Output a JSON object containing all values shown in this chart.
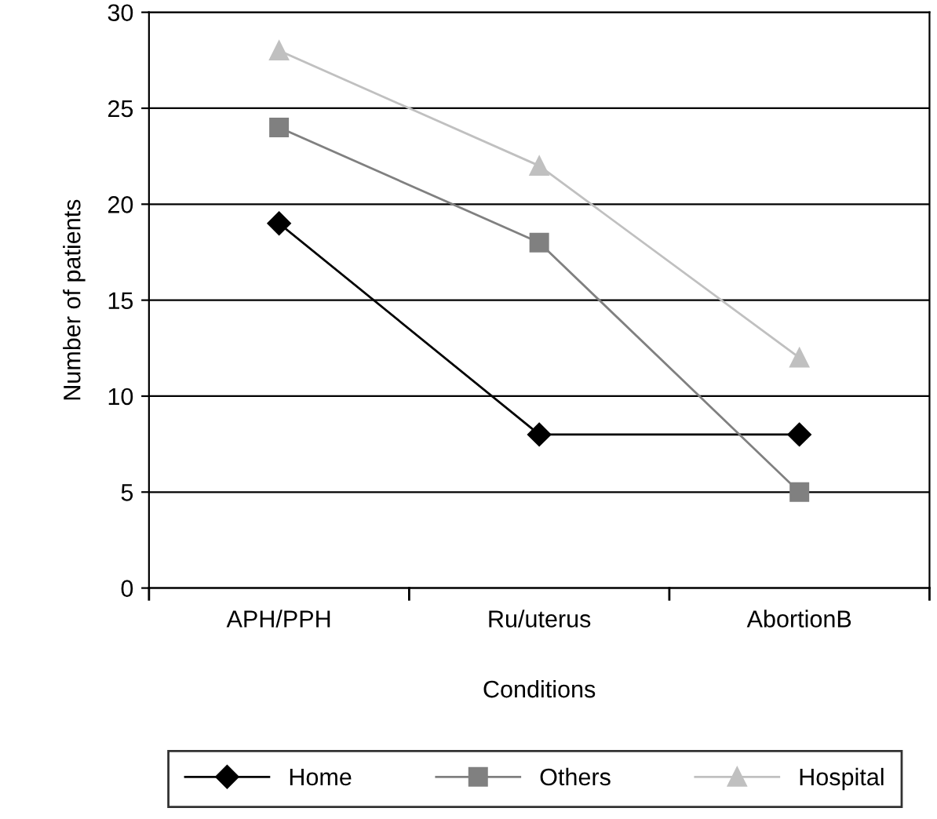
{
  "chart_data": {
    "type": "line",
    "xlabel": "Conditions",
    "ylabel": "Number of patients",
    "categories": [
      "APH/PPH",
      "Ru/uterus",
      "AbortionB"
    ],
    "series": [
      {
        "name": "Home",
        "color": "#000000",
        "marker": "diamond",
        "values": [
          19,
          8,
          8
        ]
      },
      {
        "name": "Others",
        "color": "#808080",
        "marker": "square",
        "values": [
          24,
          18,
          5
        ]
      },
      {
        "name": "Hospital",
        "color": "#c0c0c0",
        "marker": "triangle",
        "values": [
          28,
          22,
          12
        ]
      }
    ],
    "ylim": [
      0,
      30
    ],
    "yticks": [
      0,
      5,
      10,
      15,
      20,
      25,
      30
    ],
    "grid": "y",
    "legend": "bottom",
    "line_style": "solid"
  }
}
